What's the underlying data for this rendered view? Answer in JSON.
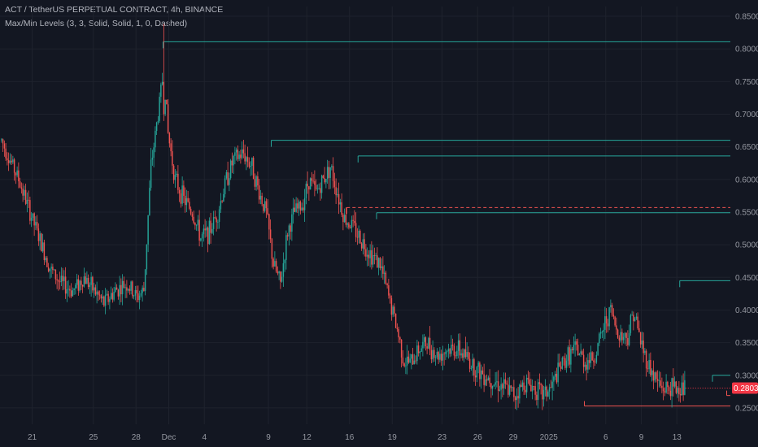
{
  "header": {
    "title": "ACT / TetherUS PERPETUAL CONTRACT, 4h, BINANCE",
    "indicator": "Max/Min Levels (3, 3, Solid, Solid, 1, 0, Dashed)"
  },
  "colors": {
    "background": "#131722",
    "grid": "#1e222d",
    "up": "#26a69a",
    "down": "#ef5350",
    "level_max": "#26a69a",
    "level_min": "#ef5350",
    "price_tag": "#f23645"
  },
  "chart_data": {
    "type": "candlestick",
    "title": "ACT / TetherUS PERPETUAL CONTRACT, 4h, BINANCE",
    "ylim": [
      0.225,
      0.865
    ],
    "y_ticks": [
      "0.25000",
      "0.30000",
      "0.35000",
      "0.40000",
      "0.45000",
      "0.50000",
      "0.55000",
      "0.60000",
      "0.65000",
      "0.70000",
      "0.75000",
      "0.80000",
      "0.85000"
    ],
    "y_tick_values": [
      0.25,
      0.3,
      0.35,
      0.4,
      0.45,
      0.5,
      0.55,
      0.6,
      0.65,
      0.7,
      0.75,
      0.8,
      0.85
    ],
    "x_tick_labels": [
      "21",
      "25",
      "28",
      "Dec",
      "4",
      "9",
      "12",
      "16",
      "19",
      "23",
      "26",
      "29",
      "2025",
      "6",
      "9",
      "13"
    ],
    "x_tick_candle_index": [
      22,
      65,
      95,
      118,
      143,
      188,
      215,
      245,
      275,
      310,
      335,
      360,
      385,
      425,
      450,
      475
    ],
    "candle_count": 500,
    "last_price": "0.28038",
    "price_path_anchors": [
      [
        0,
        0.66
      ],
      [
        6,
        0.63
      ],
      [
        12,
        0.6
      ],
      [
        20,
        0.55
      ],
      [
        28,
        0.5
      ],
      [
        35,
        0.46
      ],
      [
        42,
        0.44
      ],
      [
        50,
        0.43
      ],
      [
        58,
        0.45
      ],
      [
        65,
        0.43
      ],
      [
        72,
        0.41
      ],
      [
        80,
        0.43
      ],
      [
        88,
        0.44
      ],
      [
        95,
        0.42
      ],
      [
        100,
        0.43
      ],
      [
        105,
        0.62
      ],
      [
        110,
        0.7
      ],
      [
        114,
        0.77
      ],
      [
        117,
        0.67
      ],
      [
        122,
        0.6
      ],
      [
        128,
        0.57
      ],
      [
        134,
        0.55
      ],
      [
        140,
        0.51
      ],
      [
        146,
        0.52
      ],
      [
        152,
        0.55
      ],
      [
        158,
        0.6
      ],
      [
        163,
        0.63
      ],
      [
        170,
        0.64
      ],
      [
        176,
        0.62
      ],
      [
        181,
        0.58
      ],
      [
        186,
        0.55
      ],
      [
        191,
        0.47
      ],
      [
        196,
        0.44
      ],
      [
        201,
        0.52
      ],
      [
        206,
        0.55
      ],
      [
        211,
        0.56
      ],
      [
        216,
        0.6
      ],
      [
        221,
        0.58
      ],
      [
        226,
        0.6
      ],
      [
        231,
        0.62
      ],
      [
        236,
        0.58
      ],
      [
        241,
        0.54
      ],
      [
        246,
        0.53
      ],
      [
        252,
        0.51
      ],
      [
        258,
        0.49
      ],
      [
        266,
        0.47
      ],
      [
        272,
        0.42
      ],
      [
        278,
        0.37
      ],
      [
        283,
        0.32
      ],
      [
        288,
        0.32
      ],
      [
        293,
        0.34
      ],
      [
        299,
        0.35
      ],
      [
        306,
        0.33
      ],
      [
        313,
        0.34
      ],
      [
        320,
        0.34
      ],
      [
        326,
        0.33
      ],
      [
        333,
        0.31
      ],
      [
        340,
        0.3
      ],
      [
        347,
        0.29
      ],
      [
        354,
        0.28
      ],
      [
        361,
        0.27
      ],
      [
        368,
        0.29
      ],
      [
        375,
        0.28
      ],
      [
        380,
        0.27
      ],
      [
        386,
        0.28
      ],
      [
        392,
        0.31
      ],
      [
        398,
        0.33
      ],
      [
        404,
        0.34
      ],
      [
        410,
        0.32
      ],
      [
        417,
        0.33
      ],
      [
        424,
        0.38
      ],
      [
        428,
        0.4
      ],
      [
        432,
        0.37
      ],
      [
        436,
        0.36
      ],
      [
        440,
        0.36
      ],
      [
        444,
        0.4
      ],
      [
        447,
        0.37
      ],
      [
        452,
        0.33
      ],
      [
        458,
        0.3
      ],
      [
        464,
        0.28
      ],
      [
        470,
        0.28
      ],
      [
        476,
        0.28
      ],
      [
        480,
        0.28
      ]
    ],
    "levels": [
      {
        "kind": "max",
        "value": 0.811,
        "from_index": 114,
        "style": "solid"
      },
      {
        "kind": "max",
        "value": 0.66,
        "from_index": 190,
        "style": "solid"
      },
      {
        "kind": "max",
        "value": 0.636,
        "from_index": 251,
        "style": "solid"
      },
      {
        "kind": "max",
        "value": 0.549,
        "from_index": 264,
        "style": "solid"
      },
      {
        "kind": "mid",
        "value": 0.557,
        "from_index": 243,
        "style": "dashed"
      },
      {
        "kind": "max",
        "value": 0.445,
        "from_index": 477,
        "style": "solid"
      },
      {
        "kind": "max",
        "value": 0.3,
        "from_index": 500,
        "style": "solid"
      },
      {
        "kind": "min",
        "value": 0.269,
        "from_index": 510,
        "style": "solid"
      },
      {
        "kind": "min",
        "value": 0.253,
        "from_index": 410,
        "style": "solid"
      }
    ]
  }
}
